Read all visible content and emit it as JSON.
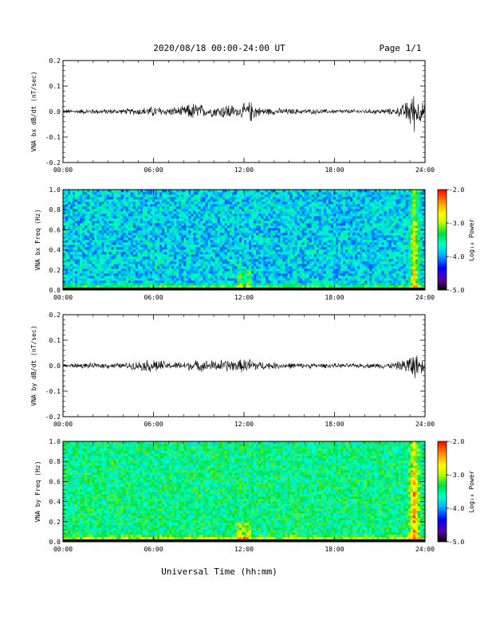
{
  "header": {
    "title": "2020/08/18  00:00-24:00 UT",
    "page": "Page 1/1"
  },
  "x_axis": {
    "tick_labels": [
      "00:00",
      "06:00",
      "12:00",
      "18:00",
      "24:00"
    ],
    "label": "Universal Time (hh:mm)"
  },
  "colorbar": {
    "label": "Log₁₀ Power",
    "tick_labels": [
      "-2.0",
      "-3.0",
      "-4.0",
      "-5.0"
    ],
    "range": [
      -5.0,
      -2.0
    ],
    "colors": [
      "#000000",
      "#5a00a0",
      "#0000ff",
      "#00b4ff",
      "#00ffc8",
      "#00e040",
      "#c8ff00",
      "#ffff00",
      "#ff8c00",
      "#ff0000"
    ]
  },
  "chart_data": [
    {
      "type": "line",
      "ylabel": "VNA bx dB/dt (nT/sec)",
      "xlim": [
        0,
        24
      ],
      "ylim": [
        -0.2,
        0.2
      ],
      "ytick_labels": [
        "0.2",
        "0.1",
        "0.0",
        "-0.1",
        "-0.2"
      ],
      "envelope_hours": [
        0,
        2,
        4,
        5.5,
        6,
        7,
        8,
        8.5,
        9,
        9.5,
        10,
        10.5,
        11,
        11.5,
        12,
        12.5,
        13,
        14,
        16,
        18,
        20,
        21,
        22,
        22.5,
        23,
        23.3,
        23.6,
        24
      ],
      "envelope_amplitude": [
        0.01,
        0.012,
        0.012,
        0.02,
        0.025,
        0.018,
        0.025,
        0.04,
        0.04,
        0.02,
        0.025,
        0.03,
        0.04,
        0.02,
        0.035,
        0.05,
        0.02,
        0.015,
        0.012,
        0.01,
        0.01,
        0.012,
        0.015,
        0.03,
        0.07,
        0.09,
        0.06,
        0.03
      ]
    },
    {
      "type": "heatmap",
      "ylabel": "VNA bx Freq (Hz)",
      "xlim": [
        0,
        24
      ],
      "ylim": [
        0.0,
        1.0
      ],
      "ytick_labels": [
        "1.0",
        "0.8",
        "0.6",
        "0.4",
        "0.2",
        "0.0"
      ],
      "zlim": [
        -5.0,
        -2.0
      ]
    },
    {
      "type": "line",
      "ylabel": "VNA by dB/dt (nT/sec)",
      "xlim": [
        0,
        24
      ],
      "ylim": [
        -0.2,
        0.2
      ],
      "ytick_labels": [
        "0.2",
        "0.1",
        "0.0",
        "-0.1",
        "-0.2"
      ],
      "envelope_hours": [
        0,
        2,
        4,
        5.5,
        6,
        7,
        8,
        9,
        10,
        11,
        11.5,
        12,
        12.5,
        13,
        14,
        16,
        18,
        20,
        21,
        22,
        22.5,
        23,
        23.3,
        23.6,
        24
      ],
      "envelope_amplitude": [
        0.01,
        0.012,
        0.012,
        0.025,
        0.035,
        0.015,
        0.02,
        0.025,
        0.025,
        0.03,
        0.025,
        0.03,
        0.035,
        0.02,
        0.015,
        0.012,
        0.01,
        0.01,
        0.012,
        0.015,
        0.025,
        0.05,
        0.06,
        0.04,
        0.02
      ]
    },
    {
      "type": "heatmap",
      "ylabel": "VNA by Freq (Hz)",
      "xlim": [
        0,
        24
      ],
      "ylim": [
        0.0,
        1.0
      ],
      "ytick_labels": [
        "1.0",
        "0.8",
        "0.6",
        "0.4",
        "0.2",
        "0.0"
      ],
      "zlim": [
        -5.0,
        -2.0
      ]
    }
  ]
}
